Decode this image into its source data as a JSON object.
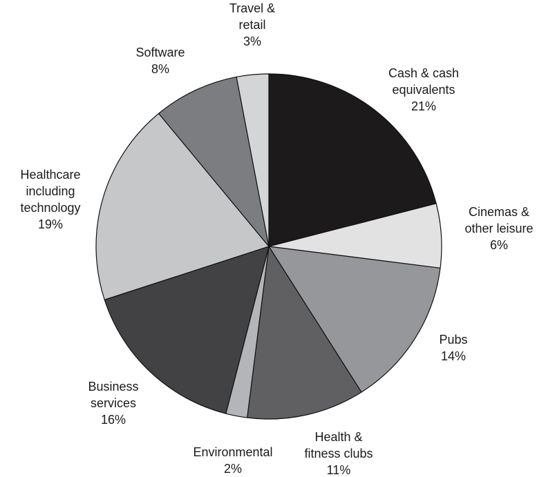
{
  "chart_data": {
    "type": "pie",
    "title": "",
    "start_angle_deg": 0,
    "direction": "clockwise",
    "slices": [
      {
        "label": [
          "Cash & cash",
          "equivalents"
        ],
        "pct_label": "21%",
        "value": 21,
        "color": "#1d1a1b"
      },
      {
        "label": [
          "Cinemas &",
          "other leisure"
        ],
        "pct_label": "6%",
        "value": 6,
        "color": "#e2e2e3"
      },
      {
        "label": [
          "Pubs"
        ],
        "pct_label": "14%",
        "value": 14,
        "color": "#96979a"
      },
      {
        "label": [
          "Health &",
          "fitness clubs"
        ],
        "pct_label": "11%",
        "value": 11,
        "color": "#605f61"
      },
      {
        "label": [
          "Environmental"
        ],
        "pct_label": "2%",
        "value": 2,
        "color": "#b4b5b8"
      },
      {
        "label": [
          "Business",
          "services"
        ],
        "pct_label": "16%",
        "value": 16,
        "color": "#424143"
      },
      {
        "label": [
          "Healthcare",
          "including",
          "technology"
        ],
        "pct_label": "19%",
        "value": 19,
        "color": "#c6c7c9"
      },
      {
        "label": [
          "Software"
        ],
        "pct_label": "8%",
        "value": 8,
        "color": "#7c7d80"
      },
      {
        "label": [
          "Travel &",
          "retail"
        ],
        "pct_label": "3%",
        "value": 3,
        "color": "#d4d5d7"
      }
    ]
  }
}
